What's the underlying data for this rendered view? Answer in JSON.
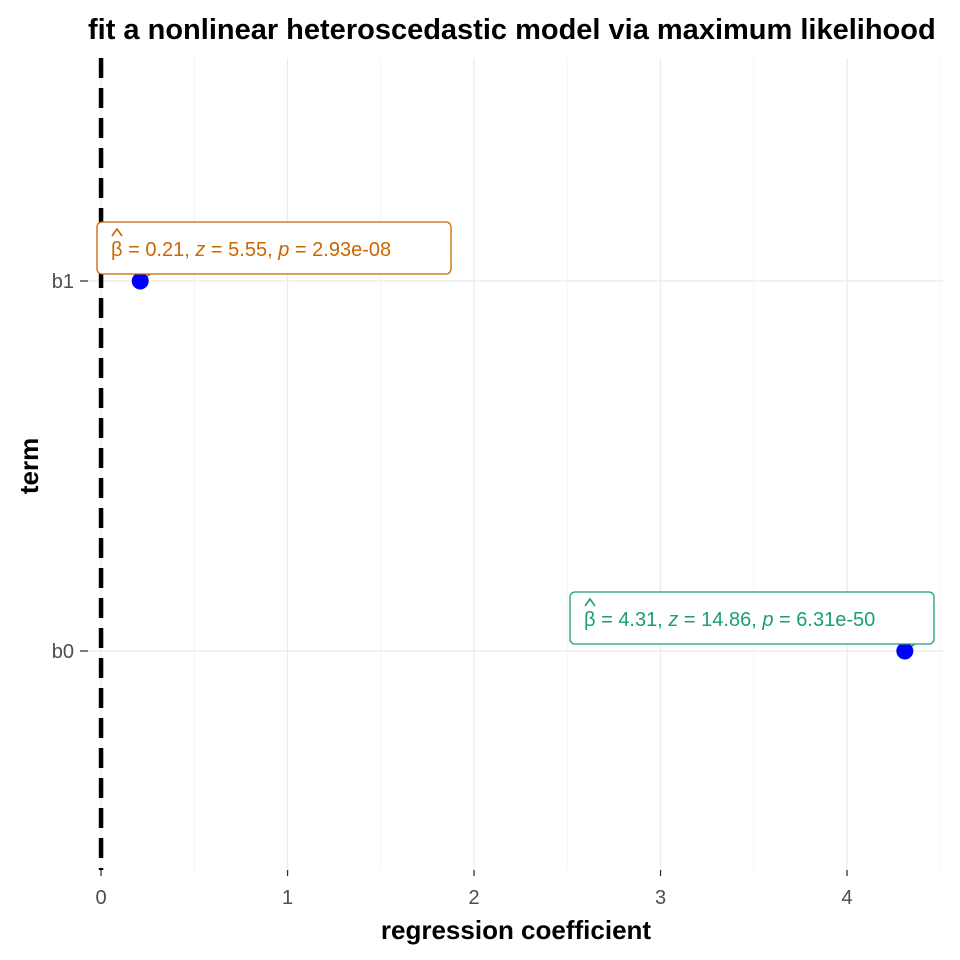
{
  "chart_data": {
    "type": "scatter",
    "title": "fit a nonlinear heteroscedastic model via maximum likelihood",
    "xlabel": "regression coefficient",
    "ylabel": "term",
    "xlim": [
      -0.07,
      4.52
    ],
    "x_ticks": [
      0,
      1,
      2,
      3,
      4
    ],
    "categories": [
      "b0",
      "b1"
    ],
    "grid": true,
    "reference_line": {
      "x": 0,
      "style": "dashed"
    },
    "point_color": "#0000ff",
    "points": [
      {
        "term": "b1",
        "estimate": 0.21,
        "label_color": "#cc6600",
        "label": {
          "beta_symbol": "β",
          "estimate": "0.21",
          "z": "5.55",
          "p": "2.93e-08"
        }
      },
      {
        "term": "b0",
        "estimate": 4.31,
        "label_color": "#1b9e77",
        "label": {
          "beta_symbol": "β",
          "estimate": "4.31",
          "z": "14.86",
          "p": "6.31e-50"
        }
      }
    ]
  }
}
